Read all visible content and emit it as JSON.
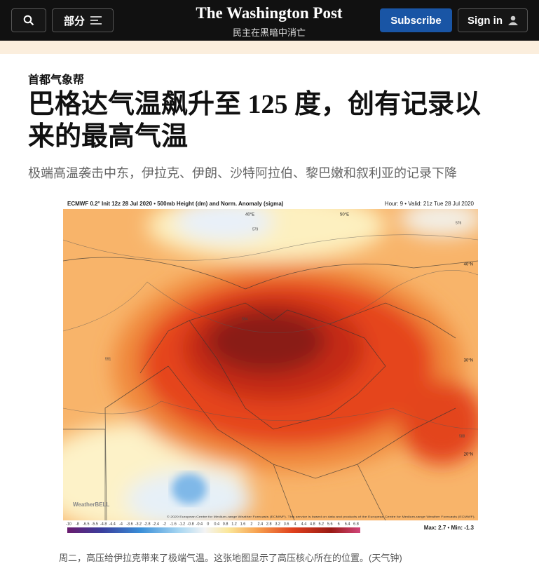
{
  "header": {
    "section_button": "部分",
    "logo": "The Washington Post",
    "tagline": "民主在黑暗中消亡",
    "subscribe": "Subscribe",
    "sign_in": "Sign in"
  },
  "article": {
    "kicker": "首都气象帮",
    "title_lines": [
      "巴格达气温飙升至 125 度，创有记录以",
      "来的最高气温"
    ],
    "subtitle": "极端高温袭击中东，伊拉克、伊朗、沙特阿拉伯、黎巴嫩和叙利亚的记录下降",
    "caption": "周二，高压给伊拉克带来了极端气温。这张地图显示了高压核心所在的位置。(天气钟)"
  },
  "map": {
    "header_left": "ECMWF 0.2° Init 12z 28 Jul 2020 • 500mb Height (dm) and Norm. Anomaly (sigma)",
    "header_right": "Hour: 9 • Valid: 21z Tue 28 Jul 2020",
    "lat_labels": [
      "40°N",
      "30°N",
      "20°N"
    ],
    "lon_labels": [
      "40°E",
      "50°E"
    ],
    "contour_labels": [
      "579",
      "594",
      "591",
      "588",
      "576"
    ],
    "credit": "WeatherBELL",
    "copyright": "© 2020 European Centre for Medium-range Weather Forecasts (ECMWF). This service is based on data and products of the European Centre for Medium-range Weather Forecasts (ECMWF).",
    "colorbar_labels": [
      "-10",
      "-8",
      "-6.5",
      "-5.5",
      "-4.8",
      "-4.4",
      "-4",
      "-3.6",
      "-3.2",
      "-2.8",
      "-2.4",
      "-2",
      "-1.6",
      "-1.2",
      "-0.8",
      "-0.4",
      "0",
      "0.4",
      "0.8",
      "1.2",
      "1.6",
      "2",
      "2.4",
      "2.8",
      "3.2",
      "3.6",
      "4",
      "4.4",
      "4.8",
      "5.2",
      "5.6",
      "6",
      "6.4",
      "6.8"
    ],
    "stats": "Max: 2.7 • Min: -1.3"
  }
}
